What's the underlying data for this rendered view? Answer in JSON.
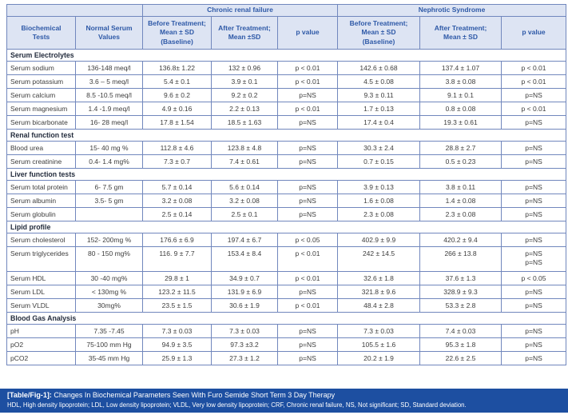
{
  "colors": {
    "header_bg": "#dde4f3",
    "header_text": "#2e59a7",
    "border": "#7187bd",
    "footer_bg": "#1d4fa1",
    "body_text": "#3d3d3d",
    "section_text": "#232c3d"
  },
  "table": {
    "group_headers": [
      "",
      "Chronic renal failure",
      "Nephrotic Syndrome"
    ],
    "col_headers": [
      "Biochemical\nTests",
      "Normal Serum\nValues",
      "Before Treatment;\nMean ± SD\n(Baseline)",
      "After Treatment;\nMean ±SD",
      "p value",
      "Before Treatment;\nMean ± SD\n(Baseline)",
      "After Treatment;\nMean ± SD",
      "p value"
    ],
    "sections": [
      {
        "title": "Serum Electrolytes",
        "rows": [
          {
            "test": "Serum sodium",
            "normal": "136-148 meq/l",
            "crf_before": "136.8± 1.22",
            "crf_after": "132 ± 0.96",
            "crf_p": "p < 0.01",
            "ns_before": "142.6 ± 0.68",
            "ns_after": "137.4 ± 1.07",
            "ns_p": "p < 0.01"
          },
          {
            "test": "Serum potassium",
            "normal": "3.6 – 5 meq/l",
            "crf_before": "5.4 ± 0.1",
            "crf_after": "3.9 ± 0.1",
            "crf_p": "p < 0.01",
            "ns_before": "4.5 ± 0.08",
            "ns_after": "3.8 ± 0.08",
            "ns_p": "p < 0.01"
          },
          {
            "test": "Serum calcium",
            "normal": "8.5 -10.5 meq/l",
            "crf_before": "9.6 ± 0.2",
            "crf_after": "9.2 ± 0.2",
            "crf_p": "p=NS",
            "ns_before": "9.3 ± 0.11",
            "ns_after": "9.1 ± 0.1",
            "ns_p": "p=NS"
          },
          {
            "test": "Serum magnesium",
            "normal": "1.4 -1.9 meq/l",
            "crf_before": "4.9 ± 0.16",
            "crf_after": "2.2 ± 0.13",
            "crf_p": "p < 0.01",
            "ns_before": "1.7 ± 0.13",
            "ns_after": "0.8 ± 0.08",
            "ns_p": "p < 0.01"
          },
          {
            "test": "Serum bicarbonate",
            "normal": "16- 28 meq/l",
            "crf_before": "17.8 ± 1.54",
            "crf_after": "18.5 ± 1.63",
            "crf_p": "p=NS",
            "ns_before": "17.4 ± 0.4",
            "ns_after": "19.3 ± 0.61",
            "ns_p": "p=NS"
          }
        ]
      },
      {
        "title": "Renal function test",
        "rows": [
          {
            "test": "Blood urea",
            "normal": "15- 40 mg %",
            "crf_before": "112.8 ± 4.6",
            "crf_after": "123.8 ± 4.8",
            "crf_p": "p=NS",
            "ns_before": "30.3 ± 2.4",
            "ns_after": "28.8 ± 2.7",
            "ns_p": "p=NS"
          },
          {
            "test": "Serum creatinine",
            "normal": "0.4- 1.4 mg%",
            "crf_before": "7.3 ± 0.7",
            "crf_after": "7.4 ± 0.61",
            "crf_p": "p=NS",
            "ns_before": "0.7 ± 0.15",
            "ns_after": "0.5 ± 0.23",
            "ns_p": "p=NS"
          }
        ]
      },
      {
        "title": "Liver function tests",
        "rows": [
          {
            "test": "Serum total protein",
            "normal": "6- 7.5 gm",
            "crf_before": "5.7 ± 0.14",
            "crf_after": "5.6 ± 0.14",
            "crf_p": "p=NS",
            "ns_before": "3.9 ± 0.13",
            "ns_after": "3.8 ± 0.11",
            "ns_p": "p=NS"
          },
          {
            "test": "Serum albumin",
            "normal": "3.5- 5 gm",
            "crf_before": "3.2 ± 0.08",
            "crf_after": "3.2 ± 0.08",
            "crf_p": "p=NS",
            "ns_before": "1.6 ± 0.08",
            "ns_after": "1.4 ± 0.08",
            "ns_p": "p=NS"
          },
          {
            "test": "Serum globulin",
            "normal": "",
            "crf_before": "2.5 ± 0.14",
            "crf_after": "2.5 ± 0.1",
            "crf_p": "p=NS",
            "ns_before": "2.3 ± 0.08",
            "ns_after": "2.3 ± 0.08",
            "ns_p": "p=NS"
          }
        ]
      },
      {
        "title": "Lipid profile",
        "rows": [
          {
            "test": "Serum cholesterol",
            "normal": "152- 200mg %",
            "crf_before": "176.6 ± 6.9",
            "crf_after": "197.4 ± 6.7",
            "crf_p": "p < 0.05",
            "ns_before": "402.9 ± 9.9",
            "ns_after": "420.2 ± 9.4",
            "ns_p": "p=NS"
          },
          {
            "test": "Serum triglycerides",
            "normal": "80 - 150 mg%",
            "crf_before": "116. 9 ± 7.7",
            "crf_after": "153.4 ± 8.4",
            "crf_p": "p < 0.01",
            "ns_before": "242 ± 14.5",
            "ns_after": "266 ± 13.8",
            "ns_p": "p=NS\np=NS"
          },
          {
            "test": "Serum HDL",
            "normal": "30 -40 mg%",
            "crf_before": "29.8 ± 1",
            "crf_after": "34.9 ± 0.7",
            "crf_p": "p < 0.01",
            "ns_before": "32.6 ± 1.8",
            "ns_after": "37.6 ± 1.3",
            "ns_p": "p < 0.05"
          },
          {
            "test": "Serum LDL",
            "normal": "< 130mg %",
            "crf_before": "123.2 ± 11.5",
            "crf_after": "131.9 ± 6.9",
            "crf_p": "p=NS",
            "ns_before": "321.8 ± 9.6",
            "ns_after": "328.9 ± 9.3",
            "ns_p": "p=NS"
          },
          {
            "test": "Serum VLDL",
            "normal": "30mg%",
            "crf_before": "23.5 ± 1.5",
            "crf_after": "30.6 ± 1.9",
            "crf_p": "p < 0.01",
            "ns_before": "48.4 ± 2.8",
            "ns_after": "53.3 ± 2.8",
            "ns_p": "p=NS"
          }
        ]
      },
      {
        "title": "Blood Gas Analysis",
        "rows": [
          {
            "test": "pH",
            "normal": "7.35 -7.45",
            "crf_before": "7.3 ± 0.03",
            "crf_after": "7.3 ± 0.03",
            "crf_p": "p=NS",
            "ns_before": "7.3 ± 0.03",
            "ns_after": "7.4 ± 0.03",
            "ns_p": "p=NS"
          },
          {
            "test": "pO2",
            "normal": "75-100 mm Hg",
            "crf_before": "94.9 ± 3.5",
            "crf_after": "97.3 ±3.2",
            "crf_p": "p=NS",
            "ns_before": "105.5 ± 1.6",
            "ns_after": "95.3 ± 1.8",
            "ns_p": "p=NS"
          },
          {
            "test": "pCO2",
            "normal": "35-45 mm Hg",
            "crf_before": "25.9 ± 1.3",
            "crf_after": "27.3 ± 1.2",
            "crf_p": "p=NS",
            "ns_before": "20.2 ± 1.9",
            "ns_after": "22.6 ± 2.5",
            "ns_p": "p=NS"
          }
        ]
      }
    ]
  },
  "footer": {
    "label": "[Table/Fig-1]:",
    "caption": "Changes In Biochemical Parameters Seen With Furo Semide Short Term 3 Day Therapy",
    "abbreviations": "HDL, High density lipoprotein; LDL, Low density lipoprotein; VLDL, Very low density lipoprotein; CRF, Chronic renal failure, NS, Not significant; SD, Standard deviation."
  }
}
